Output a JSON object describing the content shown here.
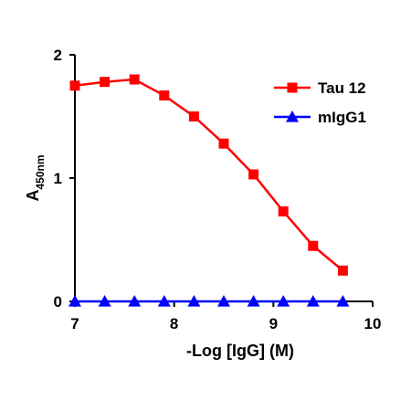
{
  "chart_data": {
    "type": "line",
    "title": "",
    "xlabel": "-Log [IgG] (M)",
    "ylabel": {
      "main": "A",
      "sub": "450nm"
    },
    "xlim": [
      7,
      10
    ],
    "ylim": [
      0,
      2
    ],
    "xticks": [
      7,
      8,
      9,
      10
    ],
    "yticks": [
      0,
      1,
      2
    ],
    "grid": false,
    "legend_position": "top-right",
    "series": [
      {
        "name": "Tau 12",
        "color": "#ff0000",
        "marker": "square",
        "x": [
          7.0,
          7.3,
          7.6,
          7.9,
          8.2,
          8.5,
          8.8,
          9.1,
          9.4,
          9.7
        ],
        "y": [
          1.75,
          1.78,
          1.8,
          1.67,
          1.5,
          1.28,
          1.03,
          0.73,
          0.45,
          0.25
        ]
      },
      {
        "name": "mIgG1",
        "color": "#0000ff",
        "marker": "triangle",
        "x": [
          7.0,
          7.3,
          7.6,
          7.9,
          8.2,
          8.5,
          8.8,
          9.1,
          9.4,
          9.7
        ],
        "y": [
          0.0,
          0.0,
          0.0,
          0.0,
          0.0,
          0.0,
          0.0,
          0.0,
          0.0,
          0.0
        ]
      }
    ]
  }
}
